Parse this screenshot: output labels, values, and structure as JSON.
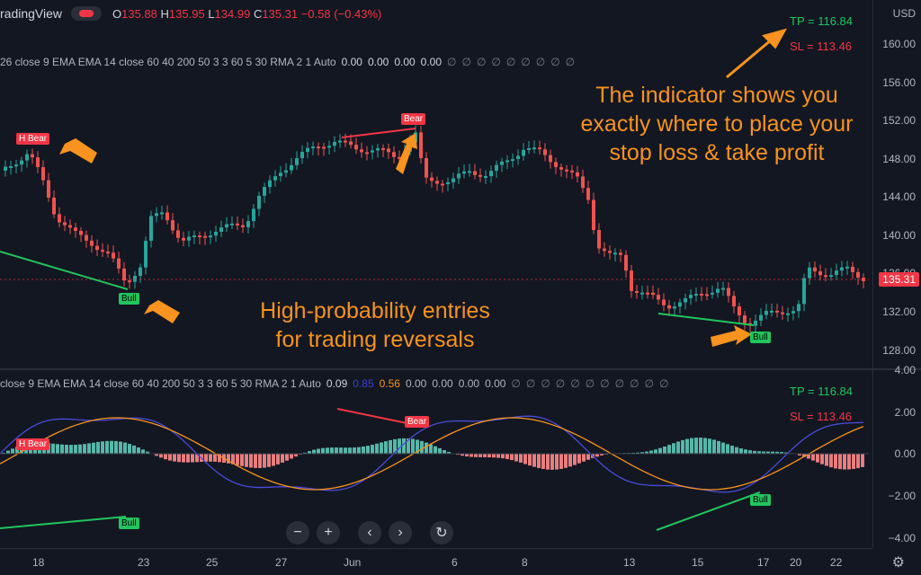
{
  "topbar": {
    "brand": "radingView",
    "ohlc": {
      "o_label": "O",
      "o": "135.88",
      "h_label": "H",
      "h": "135.95",
      "l_label": "L",
      "l": "134.99",
      "c_label": "C",
      "c": "135.31",
      "change": "−0.58 (−0.43%)"
    }
  },
  "indicator_top": {
    "params": "26 close 9 EMA EMA 14 close 60 40 200 50 3 3 60 5 30 RMA 2 1 Auto",
    "values": [
      "0.00",
      "0.00",
      "0.00",
      "0.00"
    ],
    "nans": [
      "∅",
      "∅",
      "∅",
      "∅",
      "∅",
      "∅",
      "∅",
      "∅",
      "∅"
    ]
  },
  "indicator_bottom": {
    "params": "close 9 EMA EMA 14 close 60 40 200 50 3 3 60 5 30 RMA 2 1 Auto",
    "values": [
      {
        "text": "0.09",
        "color": "#d1d4dc"
      },
      {
        "text": "0.85",
        "color": "#3f3fd0"
      },
      {
        "text": "0.56",
        "color": "#f7931e"
      },
      {
        "text": "0.00",
        "color": "#d1d4dc"
      },
      {
        "text": "0.00",
        "color": "#d1d4dc"
      },
      {
        "text": "0.00",
        "color": "#d1d4dc"
      },
      {
        "text": "0.00",
        "color": "#d1d4dc"
      }
    ],
    "nans": [
      "∅",
      "∅",
      "∅",
      "∅",
      "∅",
      "∅",
      "∅",
      "∅",
      "∅",
      "∅",
      "∅"
    ]
  },
  "price_axis": {
    "currency": "USD",
    "ticks": [
      "160.00",
      "156.00",
      "152.00",
      "148.00",
      "144.00",
      "140.00",
      "136.00",
      "132.00",
      "128.00"
    ],
    "current_price": "135.31",
    "osc_ticks": [
      "4.00",
      "2.00",
      "0.00",
      "−2.00",
      "−4.00"
    ]
  },
  "time_axis": {
    "labels": [
      "18",
      "23",
      "25",
      "27",
      "Jun",
      "6",
      "8",
      "13",
      "15",
      "17",
      "20",
      "22"
    ]
  },
  "annotations": {
    "stop_loss": [
      "The indicator shows you",
      "exactly where to place your",
      "stop loss & take profit"
    ],
    "entries": [
      "High-probability entries",
      "for trading reversals"
    ]
  },
  "signals": {
    "h_bear": "H Bear",
    "bear": "Bear",
    "bull": "Bull"
  },
  "tpsl": {
    "tp": "TP = 116.84",
    "sl": "SL = 113.46"
  },
  "colors": {
    "background": "#131722",
    "up": "#26a69a",
    "down": "#ef5350",
    "accent": "#f7931e",
    "bull_line": "#22c55e",
    "bear_line": "#f23645"
  },
  "nav": {
    "zoom_out": "−",
    "zoom_in": "+",
    "scroll_left": "‹",
    "scroll_right": "›",
    "reset": "↻"
  },
  "icons": {
    "settings": "gear-icon"
  }
}
